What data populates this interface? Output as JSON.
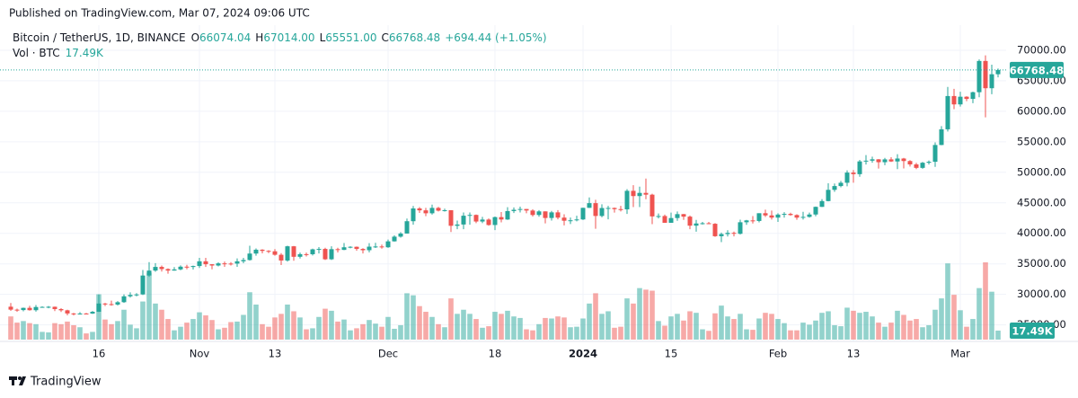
{
  "published": "Published on TradingView.com, Mar 07, 2024 09:06 UTC",
  "brand": "TradingView",
  "chart_data": {
    "type": "candlestick",
    "symbol": "Bitcoin / TetherUS, 1D, BINANCE",
    "legend": [
      {
        "key": "O",
        "value": "66074.04"
      },
      {
        "key": "H",
        "value": "67014.00"
      },
      {
        "key": "L",
        "value": "65551.00"
      },
      {
        "key": "C",
        "value": "66768.48"
      }
    ],
    "change": "+694.44 (+1.05%)",
    "volume_title": "Vol · BTC",
    "last_label": "66768.48",
    "volume_last_label": "17.49K",
    "up_color": "#26a69a",
    "down_color": "#ef5350",
    "grid": true,
    "ylim": [
      22000,
      75000
    ],
    "yticks": [
      {
        "value": 25000,
        "label": "25000.00"
      },
      {
        "value": 30000,
        "label": "30000.00"
      },
      {
        "value": 35000,
        "label": "35000.00"
      },
      {
        "value": 40000,
        "label": "40000.00"
      },
      {
        "value": 45000,
        "label": "45000.00"
      },
      {
        "value": 50000,
        "label": "50000.00"
      },
      {
        "value": 55000,
        "label": "55000.00"
      },
      {
        "value": 60000,
        "label": "60000.00"
      },
      {
        "value": 65000,
        "label": "65000.00"
      },
      {
        "value": 70000,
        "label": "70000.00"
      }
    ],
    "xticks": [
      {
        "value": 14,
        "label": "16"
      },
      {
        "value": 30,
        "label": "Nov"
      },
      {
        "value": 42,
        "label": "13"
      },
      {
        "value": 60,
        "label": "Dec"
      },
      {
        "value": 77,
        "label": "18"
      },
      {
        "value": 91,
        "label": "2024"
      },
      {
        "value": 105,
        "label": "15"
      },
      {
        "value": 122,
        "label": "Feb"
      },
      {
        "value": 134,
        "label": "13"
      },
      {
        "value": 151,
        "label": "Mar"
      }
    ],
    "open": [
      27980,
      27500,
      27430,
      27790,
      27410,
      27930,
      27950,
      27970,
      27590,
      27390,
      26870,
      26750,
      26860,
      26850,
      27150,
      28500,
      28400,
      28330,
      28720,
      29680,
      29910,
      29990,
      33090,
      33900,
      34500,
      34150,
      33900,
      34090,
      34540,
      34490,
      34650,
      35420,
      34940,
      34730,
      35080,
      35050,
      35040,
      35420,
      35630,
      36690,
      37320,
      37130,
      37060,
      36490,
      35550,
      37880,
      36160,
      36590,
      36580,
      37380,
      37450,
      35750,
      37410,
      37290,
      37720,
      37800,
      37450,
      37240,
      37820,
      37850,
      37720,
      38690,
      39460,
      39970,
      41990,
      44080,
      43770,
      43290,
      44170,
      43720,
      43790,
      41240,
      41450,
      42890,
      43020,
      41940,
      42260,
      41370,
      42660,
      42270,
      43650,
      43860,
      43990,
      43740,
      43010,
      43600,
      42520,
      43440,
      42580,
      42070,
      42140,
      42280,
      44180,
      44950,
      42850,
      44150,
      44160,
      43970,
      43930,
      46970,
      46110,
      46630,
      46340,
      42780,
      42840,
      41730,
      42510,
      43150,
      42740,
      41260,
      41620,
      41660,
      41570,
      39530,
      39880,
      40080,
      39930,
      41820,
      42120,
      42030,
      43300,
      42940,
      42580,
      43080,
      43190,
      43000,
      42580,
      42700,
      43090,
      44340,
      45290,
      47130,
      47750,
      48290,
      49960,
      49700,
      51790,
      51910,
      52130,
      51660,
      52120,
      51780,
      52260,
      51850,
      51300,
      50730,
      51570,
      51730,
      54480,
      57050,
      62500,
      61130,
      62390,
      62030,
      63130,
      68250,
      63780,
      66074.04
    ],
    "high": [
      28580,
      27670,
      27840,
      28120,
      28250,
      28030,
      28100,
      28000,
      27740,
      27480,
      26970,
      27100,
      26970,
      27290,
      30000,
      28600,
      28980,
      28900,
      30000,
      30340,
      30200,
      34000,
      35280,
      35130,
      34740,
      34250,
      34470,
      34760,
      34850,
      34720,
      35980,
      35980,
      34940,
      35250,
      35380,
      35280,
      35890,
      35980,
      37970,
      37530,
      37410,
      37230,
      37420,
      36750,
      37980,
      37930,
      36850,
      36850,
      37500,
      37760,
      37650,
      37890,
      37650,
      38420,
      37890,
      37840,
      37560,
      38400,
      38450,
      38150,
      38980,
      39690,
      40200,
      42420,
      44490,
      44300,
      44180,
      44710,
      44350,
      44050,
      43810,
      42100,
      43430,
      43420,
      43090,
      42700,
      42440,
      42760,
      43500,
      44280,
      44240,
      44370,
      43990,
      43950,
      43800,
      43600,
      43680,
      43800,
      43120,
      42600,
      42890,
      44190,
      45880,
      45500,
      44770,
      44500,
      44230,
      44500,
      47250,
      47890,
      47650,
      48970,
      46500,
      43260,
      43080,
      43400,
      43580,
      43190,
      42930,
      42200,
      41870,
      41880,
      41680,
      40130,
      40520,
      40300,
      42240,
      42200,
      42840,
      43300,
      43880,
      43740,
      43290,
      43480,
      43380,
      43120,
      43540,
      43400,
      44390,
      45610,
      48200,
      48170,
      48590,
      50330,
      50370,
      52040,
      52820,
      52570,
      52160,
      52360,
      52480,
      52980,
      52370,
      52000,
      51550,
      51700,
      51950,
      54910,
      57580,
      64000,
      63680,
      63200,
      62470,
      63230,
      68500,
      69170,
      67640,
      67014
    ],
    "low": [
      27300,
      27160,
      27220,
      27340,
      27180,
      27860,
      27720,
      27260,
      27110,
      26560,
      26540,
      26700,
      26810,
      26810,
      27110,
      28100,
      28150,
      28170,
      28600,
      29480,
      29680,
      29890,
      32880,
      33700,
      33750,
      33390,
      33880,
      33950,
      34100,
      34080,
      34330,
      34500,
      34100,
      34580,
      34520,
      34740,
      34520,
      35110,
      35540,
      36340,
      36720,
      36760,
      36340,
      34800,
      35360,
      35500,
      35880,
      36210,
      36380,
      36700,
      35630,
      35630,
      36870,
      37250,
      37550,
      37150,
      36710,
      36880,
      37600,
      37500,
      37620,
      38650,
      39300,
      39960,
      41420,
      43340,
      42820,
      43080,
      43580,
      43560,
      40220,
      40680,
      40670,
      41420,
      41680,
      41680,
      41250,
      40530,
      41800,
      42200,
      43330,
      43420,
      43300,
      42750,
      42720,
      41640,
      42100,
      42300,
      41300,
      41520,
      41960,
      42190,
      44150,
      40750,
      42630,
      42300,
      43400,
      43590,
      43180,
      44300,
      44300,
      45600,
      41500,
      42440,
      41720,
      41720,
      42050,
      42200,
      40680,
      40280,
      41450,
      41500,
      39430,
      38560,
      39480,
      39500,
      39820,
      41390,
      41620,
      41800,
      42680,
      42270,
      41880,
      42580,
      42880,
      42220,
      42260,
      42570,
      42790,
      44330,
      45240,
      46800,
      47550,
      47710,
      48300,
      49270,
      51280,
      51580,
      50620,
      51170,
      51700,
      50520,
      50630,
      50950,
      50520,
      50580,
      51280,
      50900,
      54450,
      56690,
      60360,
      60780,
      61650,
      61320,
      62300,
      59000,
      62800,
      65551
    ],
    "close": [
      27500,
      27430,
      27790,
      27410,
      27930,
      27950,
      27970,
      27590,
      27390,
      26870,
      26750,
      26860,
      26850,
      27150,
      28500,
      28400,
      28330,
      28720,
      29680,
      29910,
      29990,
      33090,
      33900,
      34500,
      34150,
      33900,
      34090,
      34540,
      34490,
      34650,
      35420,
      34940,
      34730,
      35080,
      35050,
      35040,
      35420,
      35630,
      36690,
      37320,
      37130,
      37060,
      36490,
      35550,
      37880,
      36160,
      36590,
      36580,
      37380,
      37450,
      35750,
      37410,
      37290,
      37720,
      37800,
      37450,
      37240,
      37820,
      37850,
      37720,
      38690,
      39460,
      39970,
      41990,
      44080,
      43770,
      43290,
      44170,
      43720,
      43790,
      41240,
      41450,
      42890,
      43020,
      41940,
      42260,
      41370,
      42660,
      42270,
      43650,
      43860,
      43990,
      43740,
      43010,
      43600,
      42520,
      43440,
      42580,
      42070,
      42140,
      42280,
      44180,
      44950,
      42850,
      44150,
      44160,
      43970,
      43930,
      46970,
      46110,
      46630,
      46340,
      42780,
      42840,
      41730,
      42510,
      43150,
      42740,
      41260,
      41620,
      41660,
      41570,
      39530,
      39880,
      40080,
      39930,
      41820,
      42120,
      42030,
      43300,
      42940,
      42580,
      43080,
      43190,
      43000,
      42580,
      42700,
      43090,
      44340,
      45290,
      47130,
      47750,
      48290,
      49960,
      49700,
      51790,
      51910,
      52130,
      51660,
      52120,
      51780,
      52260,
      51850,
      51300,
      50730,
      51570,
      51730,
      54480,
      57050,
      62500,
      61130,
      62390,
      62030,
      63130,
      68250,
      63780,
      66074.04,
      66768.48
    ],
    "volume": [
      45000,
      33000,
      36000,
      32000,
      30000,
      15000,
      14000,
      32000,
      30000,
      35000,
      28000,
      24000,
      12000,
      15000,
      88000,
      39000,
      30000,
      36000,
      58000,
      29000,
      22000,
      74000,
      130000,
      70000,
      58000,
      40000,
      18000,
      25000,
      33000,
      40000,
      53000,
      47000,
      38000,
      20000,
      23000,
      34000,
      35000,
      48000,
      92000,
      68000,
      30000,
      25000,
      43000,
      50000,
      68000,
      55000,
      43000,
      20000,
      22000,
      44000,
      60000,
      56000,
      35000,
      39000,
      18000,
      22000,
      30000,
      38000,
      31000,
      25000,
      44000,
      21000,
      28000,
      90000,
      86000,
      65000,
      54000,
      44000,
      30000,
      24000,
      80000,
      50000,
      58000,
      50000,
      40000,
      23000,
      26000,
      54000,
      50000,
      56000,
      45000,
      42000,
      20000,
      18000,
      30000,
      42000,
      41000,
      45000,
      43000,
      24000,
      25000,
      41000,
      70000,
      90000,
      50000,
      55000,
      23000,
      25000,
      80000,
      70000,
      100000,
      97000,
      95000,
      36000,
      27000,
      45000,
      50000,
      37000,
      55000,
      52000,
      20000,
      17000,
      51000,
      66000,
      45000,
      40000,
      50000,
      20000,
      19000,
      41000,
      52000,
      50000,
      40000,
      32000,
      18000,
      18000,
      33000,
      29000,
      37000,
      52000,
      55000,
      28000,
      26000,
      62000,
      56000,
      52000,
      54000,
      45000,
      33000,
      25000,
      33000,
      56000,
      48000,
      37000,
      40000,
      24000,
      28000,
      58000,
      80000,
      148000,
      87000,
      57000,
      25000,
      40000,
      100000,
      150000,
      93000,
      17490
    ]
  }
}
